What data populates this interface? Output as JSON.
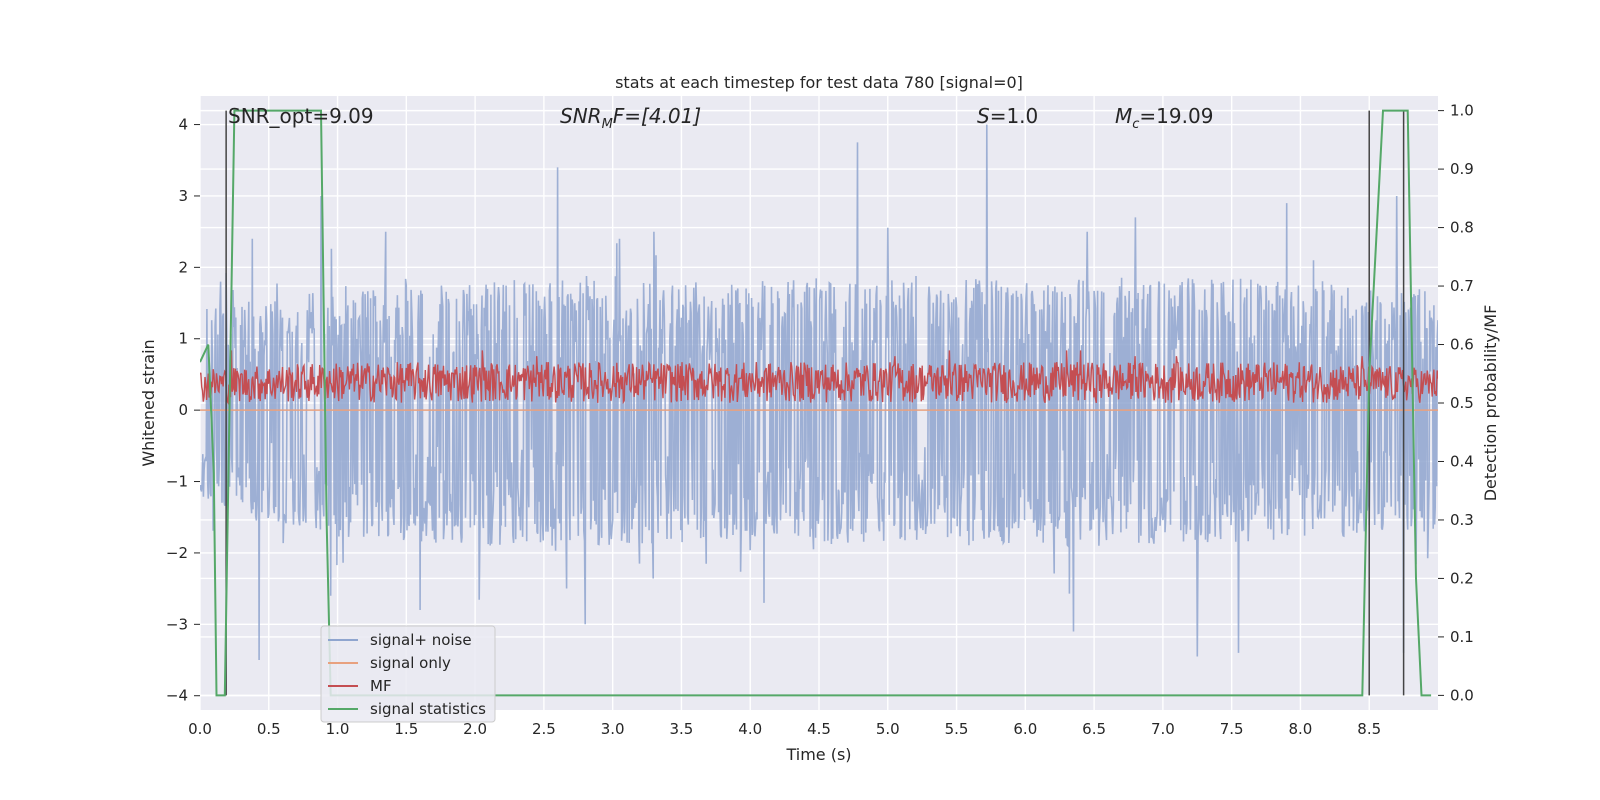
{
  "chart_data": {
    "type": "line",
    "title": "stats at each timestep for test data 780 [signal=0]",
    "xlabel": "Time (s)",
    "ylabel": "Whitened strain",
    "ylabel_right": "Detection probability/MF",
    "xlim": [
      0.0,
      9.0
    ],
    "ylim": [
      -4.2,
      4.4
    ],
    "ylim_right": [
      -0.025,
      1.025
    ],
    "xticks": [
      "0.0",
      "0.5",
      "1.0",
      "1.5",
      "2.0",
      "2.5",
      "3.0",
      "3.5",
      "4.0",
      "4.5",
      "5.0",
      "5.5",
      "6.0",
      "6.5",
      "7.0",
      "7.5",
      "8.0",
      "8.5"
    ],
    "yticks": [
      "4",
      "3",
      "2",
      "1",
      "0",
      "−1",
      "−2",
      "−3",
      "−4"
    ],
    "yticks_right": [
      "1.0",
      "0.9",
      "0.8",
      "0.7",
      "0.6",
      "0.5",
      "0.4",
      "0.3",
      "0.2",
      "0.1",
      "0.0"
    ],
    "grid": true,
    "legend_position": "lower-left",
    "annotations": {
      "snr_opt": "SNR_opt=9.09",
      "snr_mf_base": "SNR",
      "snr_mf_sub": "M",
      "snr_mf_rest": "F=[4.01]",
      "s_base": "S",
      "s_rest": "=1.0",
      "mc_base": "M",
      "mc_sub": "c",
      "mc_rest": "=19.09"
    },
    "series": [
      {
        "name": "signal+ noise",
        "color": "#8fa5cf",
        "kind": "noise",
        "envelope_upper": [
          [
            0.0,
            1.4
          ],
          [
            0.5,
            1.6
          ],
          [
            1.0,
            1.7
          ],
          [
            2.0,
            1.8
          ],
          [
            3.0,
            1.9
          ],
          [
            4.0,
            1.8
          ],
          [
            5.0,
            1.9
          ],
          [
            6.0,
            1.8
          ],
          [
            7.0,
            1.9
          ],
          [
            8.0,
            1.8
          ],
          [
            9.0,
            1.7
          ]
        ],
        "envelope_lower": [
          [
            0.0,
            -1.3
          ],
          [
            0.5,
            -1.6
          ],
          [
            1.0,
            -1.8
          ],
          [
            2.0,
            -1.9
          ],
          [
            3.0,
            -1.9
          ],
          [
            4.0,
            -1.8
          ],
          [
            5.0,
            -1.9
          ],
          [
            6.0,
            -1.9
          ],
          [
            7.0,
            -1.9
          ],
          [
            8.0,
            -1.8
          ],
          [
            9.0,
            -1.7
          ]
        ],
        "peaks": [
          [
            0.15,
            1.8
          ],
          [
            0.38,
            2.4
          ],
          [
            0.88,
            3.0
          ],
          [
            1.35,
            2.5
          ],
          [
            2.6,
            3.4
          ],
          [
            3.05,
            2.4
          ],
          [
            3.3,
            2.5
          ],
          [
            4.78,
            3.75
          ],
          [
            5.72,
            4.0
          ],
          [
            6.45,
            2.5
          ],
          [
            6.8,
            2.7
          ],
          [
            7.25,
            2.6
          ],
          [
            7.9,
            2.9
          ],
          [
            8.7,
            3.0
          ]
        ],
        "troughs": [
          [
            0.43,
            -3.5
          ],
          [
            0.95,
            -2.6
          ],
          [
            1.6,
            -2.8
          ],
          [
            2.8,
            -3.0
          ],
          [
            4.1,
            -2.7
          ],
          [
            6.35,
            -3.1
          ],
          [
            7.25,
            -3.45
          ],
          [
            7.55,
            -3.4
          ],
          [
            8.75,
            -3.4
          ]
        ]
      },
      {
        "name": "signal only",
        "color": "#e8a17f",
        "kind": "flat",
        "values": [
          [
            0.0,
            0.0
          ],
          [
            9.0,
            0.0
          ]
        ]
      },
      {
        "name": "MF",
        "color": "#c44e52",
        "kind": "mf",
        "axis": "right",
        "envelope_upper": [
          [
            0.0,
            0.56
          ],
          [
            1.0,
            0.57
          ],
          [
            2.0,
            0.57
          ],
          [
            3.0,
            0.57
          ],
          [
            4.0,
            0.57
          ],
          [
            5.0,
            0.57
          ],
          [
            6.0,
            0.57
          ],
          [
            7.0,
            0.57
          ],
          [
            8.0,
            0.57
          ],
          [
            9.0,
            0.56
          ]
        ],
        "envelope_lower": [
          [
            0.0,
            0.5
          ],
          [
            9.0,
            0.5
          ]
        ],
        "peaks": [
          [
            0.23,
            0.59
          ],
          [
            2.05,
            0.59
          ],
          [
            2.45,
            0.58
          ],
          [
            5.05,
            0.58
          ],
          [
            5.45,
            0.59
          ],
          [
            6.3,
            0.59
          ],
          [
            6.4,
            0.59
          ],
          [
            6.8,
            0.58
          ],
          [
            7.1,
            0.58
          ],
          [
            8.45,
            0.58
          ]
        ]
      },
      {
        "name": "signal statistics",
        "color": "#55a868",
        "kind": "step",
        "axis": "right",
        "values": [
          [
            0.0,
            0.57
          ],
          [
            0.06,
            0.6
          ],
          [
            0.1,
            0.38
          ],
          [
            0.12,
            0.0
          ],
          [
            0.18,
            0.0
          ],
          [
            0.25,
            1.0
          ],
          [
            0.88,
            1.0
          ],
          [
            0.92,
            0.3
          ],
          [
            0.95,
            0.0
          ],
          [
            8.45,
            0.0
          ],
          [
            8.5,
            0.55
          ],
          [
            8.6,
            1.0
          ],
          [
            8.78,
            1.0
          ],
          [
            8.84,
            0.2
          ],
          [
            8.88,
            0.0
          ],
          [
            8.95,
            0.0
          ]
        ]
      }
    ],
    "vertical_markers": [
      {
        "color": "#444444",
        "values": [
          [
            0.19,
            1.0
          ],
          [
            0.19,
            0.0
          ]
        ]
      },
      {
        "color": "#444444",
        "values": [
          [
            8.5,
            1.0
          ],
          [
            8.5,
            0.0
          ]
        ]
      },
      {
        "color": "#444444",
        "values": [
          [
            8.75,
            1.0
          ],
          [
            8.75,
            0.0
          ]
        ]
      }
    ]
  }
}
